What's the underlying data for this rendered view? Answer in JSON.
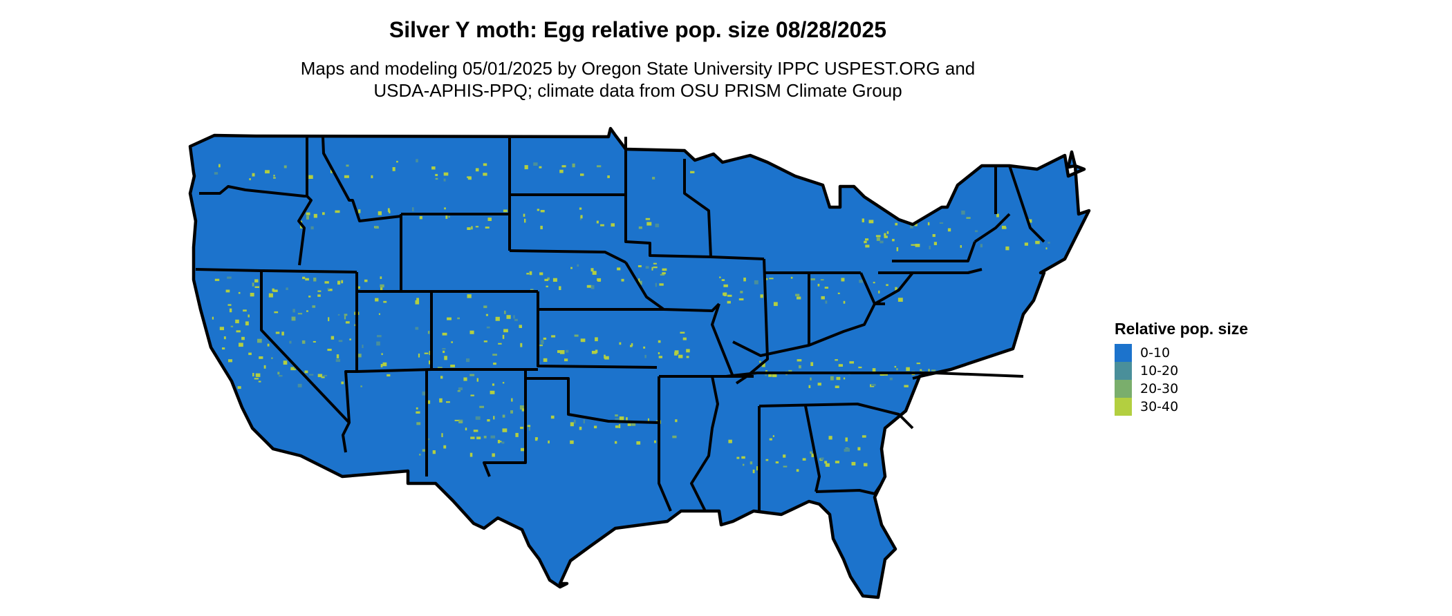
{
  "title": "Silver Y moth: Egg relative pop. size 08/28/2025",
  "subtitle_lines": [
    "Maps and modeling 05/01/2025 by Oregon State University IPPC USPEST.ORG and",
    "USDA-APHIS-PPQ; climate data from OSU PRISM Climate Group"
  ],
  "legend": {
    "title": "Relative pop. size",
    "items": [
      {
        "label": "0-10",
        "color": "#1c73cc"
      },
      {
        "label": "10-20",
        "color": "#4a8f9a"
      },
      {
        "label": "20-30",
        "color": "#7aae6c"
      },
      {
        "label": "30-40",
        "color": "#b3cf40"
      }
    ]
  },
  "colors": {
    "background": "#ffffff",
    "state_border": "#000000"
  }
}
